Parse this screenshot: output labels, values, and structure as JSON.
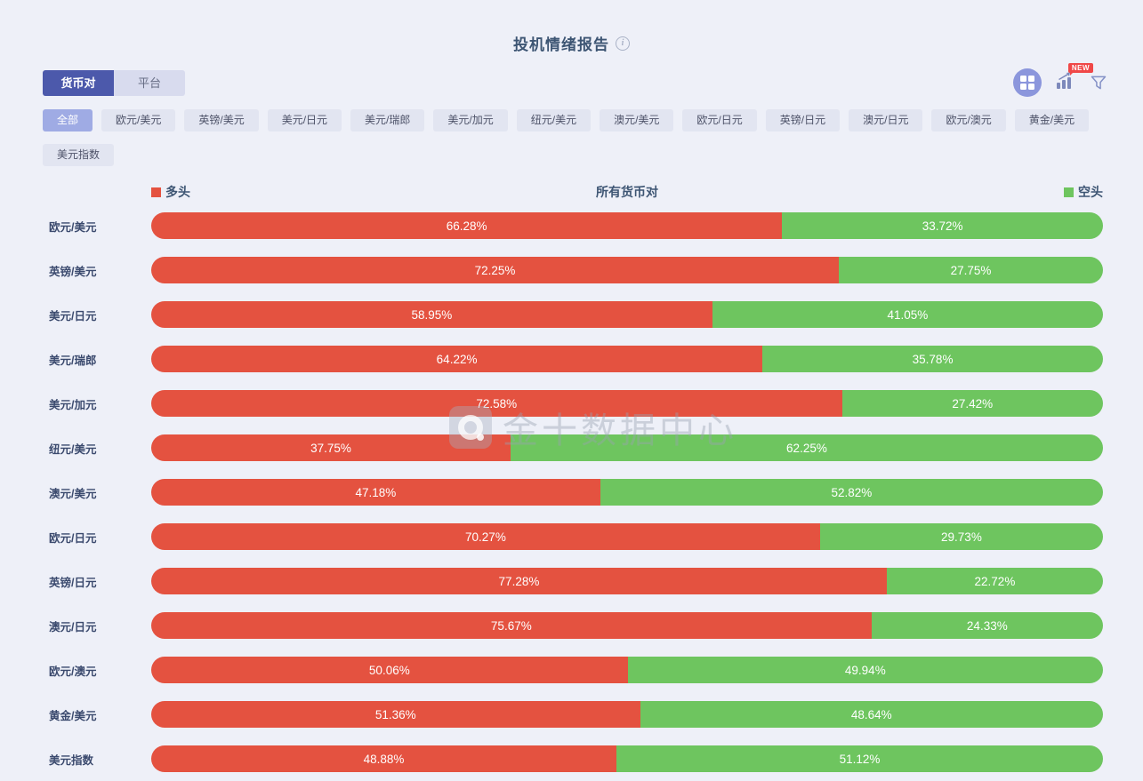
{
  "header": {
    "title": "投机情绪报告"
  },
  "tabs": [
    {
      "label": "货币对",
      "active": true
    },
    {
      "label": "平台",
      "active": false
    }
  ],
  "toolbar": {
    "new_badge": "NEW",
    "icons": [
      "dashboard-grid-icon",
      "bar-chart-trend-icon",
      "filter-funnel-icon"
    ]
  },
  "filters": {
    "row1": [
      {
        "label": "全部",
        "active": true
      },
      {
        "label": "欧元/美元",
        "active": false
      },
      {
        "label": "英镑/美元",
        "active": false
      },
      {
        "label": "美元/日元",
        "active": false
      },
      {
        "label": "美元/瑞郎",
        "active": false
      },
      {
        "label": "美元/加元",
        "active": false
      },
      {
        "label": "纽元/美元",
        "active": false
      },
      {
        "label": "澳元/美元",
        "active": false
      },
      {
        "label": "欧元/日元",
        "active": false
      },
      {
        "label": "英镑/日元",
        "active": false
      },
      {
        "label": "澳元/日元",
        "active": false
      },
      {
        "label": "欧元/澳元",
        "active": false
      },
      {
        "label": "黄金/美元",
        "active": false
      }
    ],
    "row2": [
      {
        "label": "美元指数",
        "active": false
      }
    ]
  },
  "chart_data": {
    "type": "bar",
    "layout": "horizontal_stacked",
    "title": "所有货币对",
    "unit": "%",
    "xlim": [
      0,
      100
    ],
    "legend_position": "top-left / top-right",
    "colors": {
      "long": "#E45240",
      "short": "#6EC55F"
    },
    "legend": [
      {
        "label": "多头",
        "color": "#E45240"
      },
      {
        "label": "空头",
        "color": "#6EC55F"
      }
    ],
    "categories": [
      "欧元/美元",
      "英镑/美元",
      "美元/日元",
      "美元/瑞郎",
      "美元/加元",
      "纽元/美元",
      "澳元/美元",
      "欧元/日元",
      "英镑/日元",
      "澳元/日元",
      "欧元/澳元",
      "黄金/美元",
      "美元指数"
    ],
    "series": [
      {
        "name": "多头",
        "color": "#E45240",
        "values": [
          66.28,
          72.25,
          58.95,
          64.22,
          72.58,
          37.75,
          47.18,
          70.27,
          77.28,
          75.67,
          50.06,
          51.36,
          48.88
        ]
      },
      {
        "name": "空头",
        "color": "#6EC55F",
        "values": [
          33.72,
          27.75,
          41.05,
          35.78,
          27.42,
          62.25,
          52.82,
          29.73,
          22.72,
          24.33,
          49.94,
          48.64,
          51.12
        ]
      }
    ]
  },
  "watermark": {
    "text": "金十数据中心"
  }
}
